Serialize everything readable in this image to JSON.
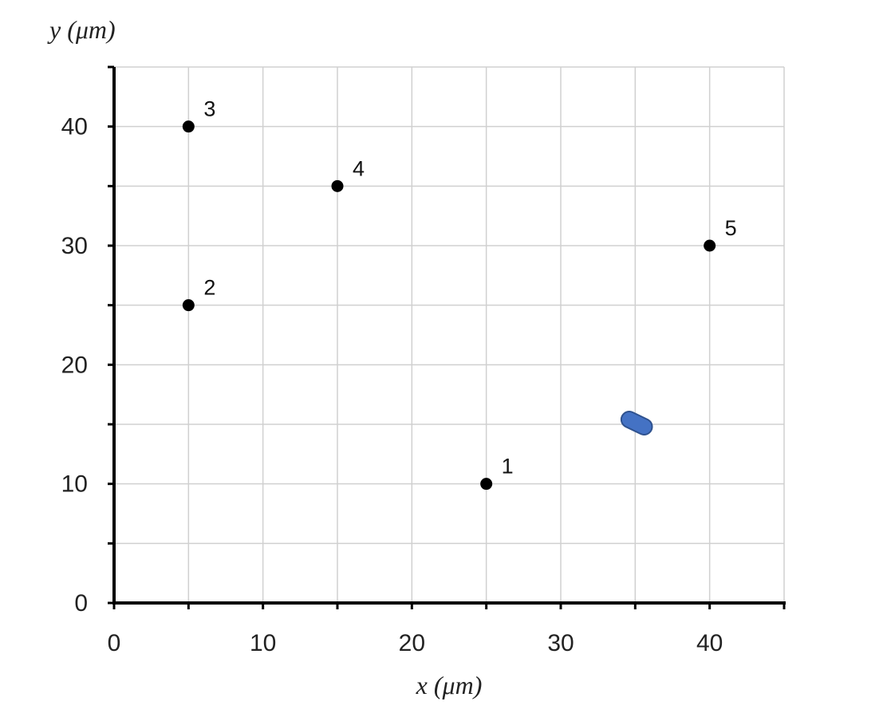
{
  "chart_data": {
    "type": "scatter",
    "xlabel": "x (μm)",
    "ylabel": "y (μm)",
    "xlim": [
      0,
      45
    ],
    "ylim": [
      0,
      45
    ],
    "x_ticks": [
      0,
      10,
      20,
      30,
      40
    ],
    "y_ticks": [
      0,
      10,
      20,
      30,
      40
    ],
    "grid_step": 5,
    "grid": true,
    "points": [
      {
        "label": "1",
        "x": 25,
        "y": 10
      },
      {
        "label": "2",
        "x": 5,
        "y": 25
      },
      {
        "label": "3",
        "x": 5,
        "y": 40
      },
      {
        "label": "4",
        "x": 15,
        "y": 35
      },
      {
        "label": "5",
        "x": 40,
        "y": 30
      }
    ],
    "bacterium": {
      "x1": 34.6,
      "y1": 15.4,
      "x2": 35.6,
      "y2": 14.8,
      "color": "#4472c4"
    },
    "colors": {
      "point": "#000000",
      "grid": "#d0d0d0",
      "axis": "#000000",
      "tick_label": "#222222"
    }
  }
}
